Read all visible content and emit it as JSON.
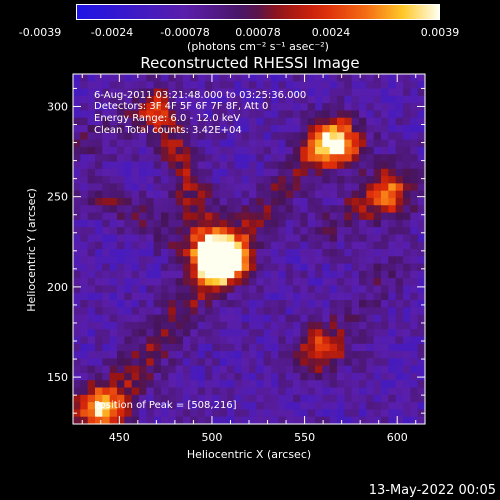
{
  "colorbar": {
    "ticks": [
      "-0.0039",
      "-0.0024",
      "-0.00078",
      "0.00078",
      "0.0024",
      "0.0039"
    ],
    "unit_label": "(photons cm⁻² s⁻¹ asec⁻²)",
    "range": [
      -0.0039,
      0.0039
    ]
  },
  "chart_data": {
    "type": "heatmap",
    "title": "Reconstructed RHESSI Image",
    "xlabel": "Heliocentric X (arcsec)",
    "ylabel": "Heliocentric Y (arcsec)",
    "xlim": [
      425,
      615
    ],
    "ylim": [
      124,
      318
    ],
    "xticks": [
      450,
      500,
      550,
      600
    ],
    "yticks": [
      150,
      200,
      250,
      300
    ],
    "peak": [
      508,
      216
    ],
    "sources": [
      {
        "x": 505,
        "y": 215,
        "intensity": 0.0039
      },
      {
        "x": 567,
        "y": 280,
        "intensity": 0.0034
      },
      {
        "x": 438,
        "y": 132,
        "intensity": 0.0024
      },
      {
        "x": 595,
        "y": 250,
        "intensity": 0.0012
      },
      {
        "x": 558,
        "y": 165,
        "intensity": 0.001
      }
    ],
    "annotations": [
      "6-Aug-2011 03:21:48.000 to 03:25:36.000",
      "Detectors: 3F 4F 5F 6F 7F 8F, Att 0",
      "Energy Range: 6.0 - 12.0 keV",
      "Clean    Total counts: 3.42E+04"
    ],
    "peak_label": "Position of Peak = [508,216]"
  },
  "footer": {
    "date": "13-May-2022 00:05"
  }
}
